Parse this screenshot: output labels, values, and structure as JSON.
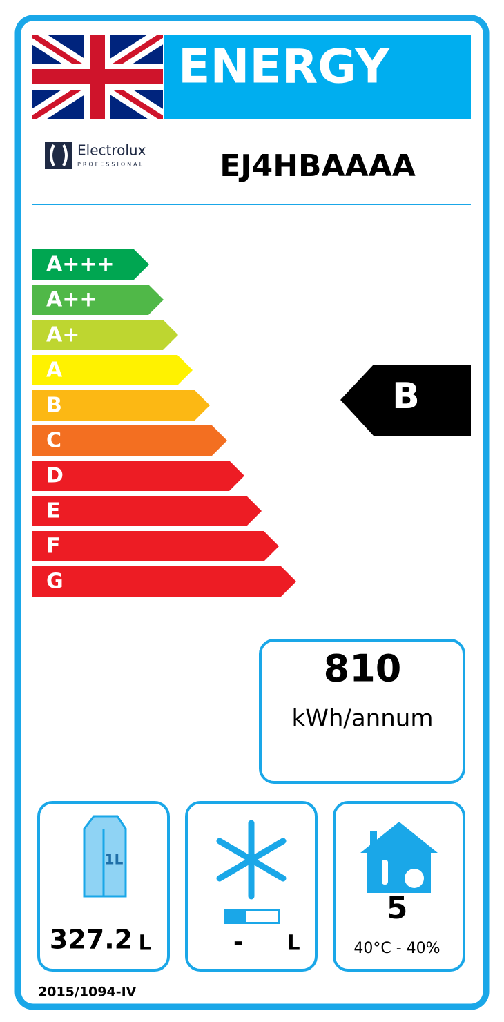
{
  "header": {
    "title": "ENERGY"
  },
  "brand": {
    "name": "Electrolux",
    "sub": "PROFESSIONAL"
  },
  "model": "EJ4HBAAAA",
  "scale": {
    "classes": [
      {
        "label": "A+++",
        "color": "#00a651"
      },
      {
        "label": "A++",
        "color": "#50b848"
      },
      {
        "label": "A+",
        "color": "#bed630"
      },
      {
        "label": "A",
        "color": "#fff200"
      },
      {
        "label": "B",
        "color": "#fcb814"
      },
      {
        "label": "C",
        "color": "#f36f21"
      },
      {
        "label": "D",
        "color": "#ed1c24"
      },
      {
        "label": "E",
        "color": "#ed1c24"
      },
      {
        "label": "F",
        "color": "#ed1c24"
      },
      {
        "label": "G",
        "color": "#ed1c24"
      }
    ],
    "rating": "B"
  },
  "consumption": {
    "value": "810",
    "unit": "kWh/annum"
  },
  "storage": {
    "icon_label": "1L",
    "volume": "327.2",
    "unit": "L"
  },
  "freezer": {
    "volume": "-",
    "unit": "L"
  },
  "climate": {
    "class": "5",
    "range": "40°C - 40%"
  },
  "regulation": "2015/1094-IV"
}
